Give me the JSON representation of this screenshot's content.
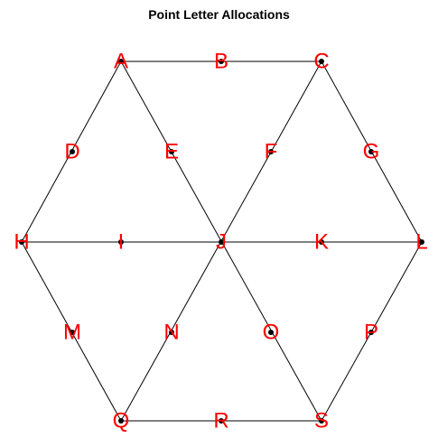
{
  "title": "Point Letter Allocations",
  "colors": {
    "line": "#000000",
    "point": "#000000",
    "label": "#ff0000"
  },
  "points": [
    {
      "label": "A"
    },
    {
      "label": "B"
    },
    {
      "label": "C"
    },
    {
      "label": "D"
    },
    {
      "label": "E"
    },
    {
      "label": "F"
    },
    {
      "label": "G"
    },
    {
      "label": "H"
    },
    {
      "label": "I"
    },
    {
      "label": "J"
    },
    {
      "label": "K"
    },
    {
      "label": "L"
    },
    {
      "label": "M"
    },
    {
      "label": "N"
    },
    {
      "label": "O"
    },
    {
      "label": "P"
    },
    {
      "label": "Q"
    },
    {
      "label": "R"
    },
    {
      "label": "S"
    }
  ],
  "edges": [
    [
      "A",
      "C"
    ],
    [
      "A",
      "H"
    ],
    [
      "A",
      "S"
    ],
    [
      "C",
      "L"
    ],
    [
      "C",
      "Q"
    ],
    [
      "H",
      "L"
    ],
    [
      "H",
      "Q"
    ],
    [
      "L",
      "S"
    ],
    [
      "Q",
      "S"
    ]
  ]
}
